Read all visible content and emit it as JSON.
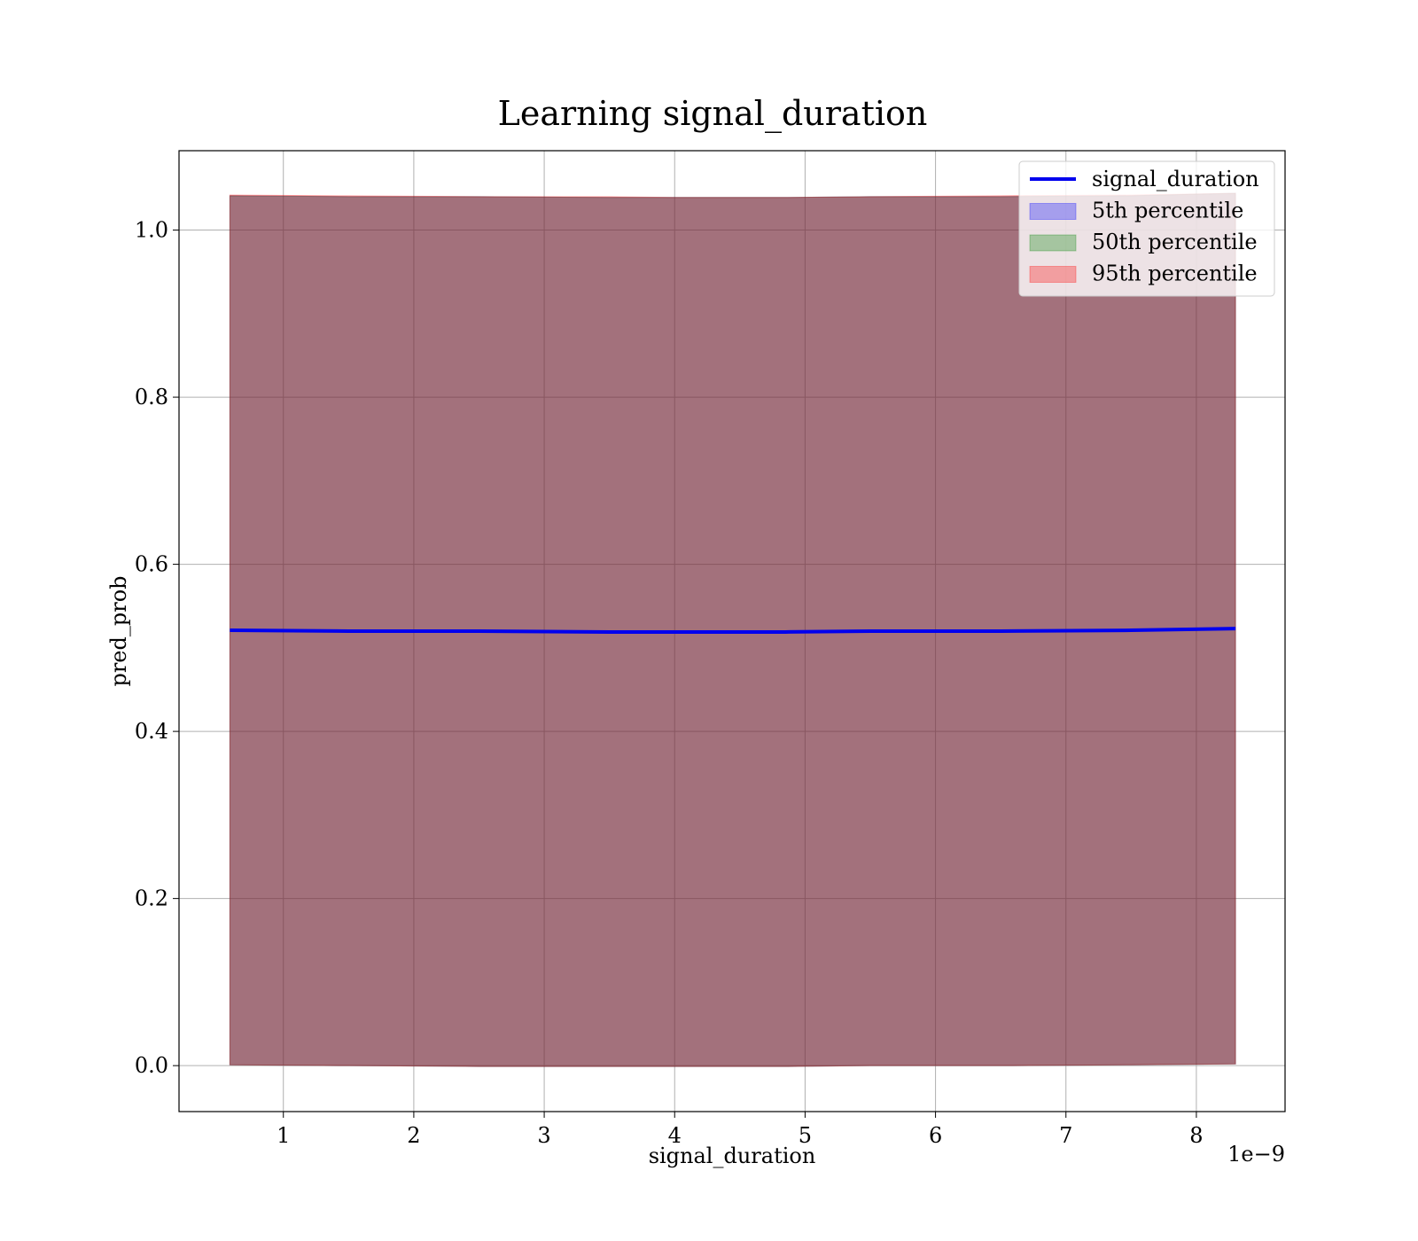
{
  "chart_data": {
    "type": "area",
    "title": "Learning signal_duration",
    "xlabel": "signal_duration",
    "ylabel": "pred_prob",
    "x_offset_label": "1e−9",
    "x_scale_factor": 1e-09,
    "xlim": [
      2e-10,
      8.68e-09
    ],
    "ylim": [
      -0.055,
      1.095
    ],
    "x_ticks": [
      1e-09,
      2e-09,
      3e-09,
      4e-09,
      5e-09,
      6e-09,
      7e-09,
      8e-09
    ],
    "x_tick_labels": [
      "1",
      "2",
      "3",
      "4",
      "5",
      "6",
      "7",
      "8"
    ],
    "y_ticks": [
      0.0,
      0.2,
      0.4,
      0.6,
      0.8,
      1.0
    ],
    "y_tick_labels": [
      "0.0",
      "0.2",
      "0.4",
      "0.6",
      "0.8",
      "1.0"
    ],
    "grid": true,
    "legend_position": "top-right",
    "x": [
      5.9e-10,
      1.5e-09,
      2.5e-09,
      3.5e-09,
      4e-09,
      4.85e-09,
      5.5e-09,
      6.5e-09,
      7.5e-09,
      8.3e-09
    ],
    "line": {
      "name": "signal_duration",
      "color": "#0000ee",
      "values": [
        0.521,
        0.52,
        0.52,
        0.519,
        0.519,
        0.519,
        0.52,
        0.52,
        0.521,
        0.523
      ]
    },
    "bands": [
      {
        "name": "5th percentile",
        "color": "#0000ff",
        "lower": [
          0.001,
          0.0,
          -0.001,
          -0.001,
          -0.001,
          -0.001,
          0.0,
          0.0,
          0.001,
          0.002
        ],
        "upper": [
          1.041,
          1.04,
          1.04,
          1.039,
          1.039,
          1.039,
          1.04,
          1.04,
          1.041,
          1.044
        ]
      },
      {
        "name": "50th percentile",
        "color": "#008000",
        "lower": [
          0.001,
          0.0,
          -0.001,
          -0.001,
          -0.001,
          -0.001,
          0.0,
          0.0,
          0.001,
          0.002
        ],
        "upper": [
          1.041,
          1.04,
          1.04,
          1.039,
          1.039,
          1.039,
          1.04,
          1.04,
          1.041,
          1.044
        ]
      },
      {
        "name": "95th percentile",
        "color": "#ff0000",
        "lower": [
          0.001,
          0.0,
          -0.001,
          -0.001,
          -0.001,
          -0.001,
          0.0,
          0.0,
          0.001,
          0.002
        ],
        "upper": [
          1.042,
          1.041,
          1.04,
          1.04,
          1.039,
          1.039,
          1.04,
          1.041,
          1.042,
          1.044
        ]
      }
    ]
  }
}
